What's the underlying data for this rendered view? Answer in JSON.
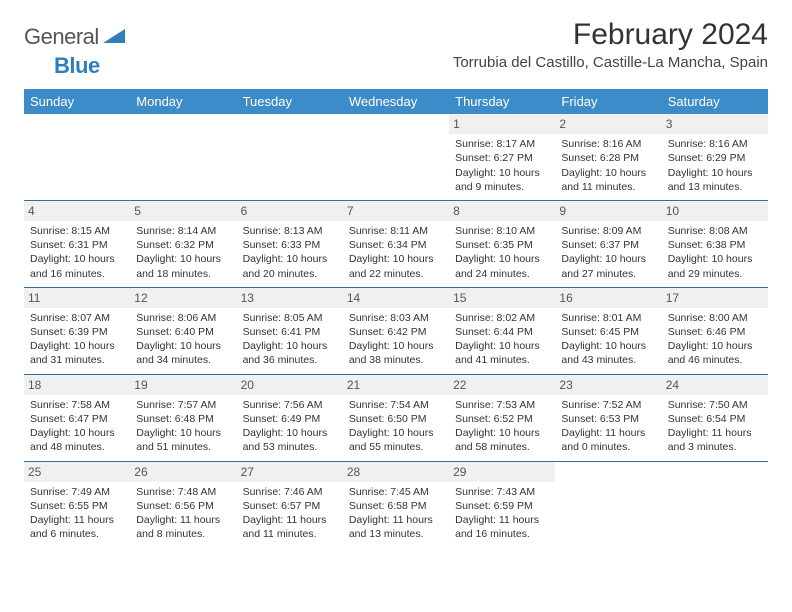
{
  "logo": {
    "word1": "General",
    "word2": "Blue"
  },
  "title": "February 2024",
  "location": "Torrubia del Castillo, Castille-La Mancha, Spain",
  "colors": {
    "header_bg": "#3b8cc8",
    "header_text": "#ffffff",
    "daynum_bg": "#f0f0f0",
    "rule": "#2f6fa8",
    "logo_blue": "#2f7fbf",
    "body_text": "#333333"
  },
  "weekdays": [
    "Sunday",
    "Monday",
    "Tuesday",
    "Wednesday",
    "Thursday",
    "Friday",
    "Saturday"
  ],
  "weeks": [
    [
      {
        "n": "",
        "sr": "",
        "ss": "",
        "d1": "",
        "d2": ""
      },
      {
        "n": "",
        "sr": "",
        "ss": "",
        "d1": "",
        "d2": ""
      },
      {
        "n": "",
        "sr": "",
        "ss": "",
        "d1": "",
        "d2": ""
      },
      {
        "n": "",
        "sr": "",
        "ss": "",
        "d1": "",
        "d2": ""
      },
      {
        "n": "1",
        "sr": "Sunrise: 8:17 AM",
        "ss": "Sunset: 6:27 PM",
        "d1": "Daylight: 10 hours",
        "d2": "and 9 minutes."
      },
      {
        "n": "2",
        "sr": "Sunrise: 8:16 AM",
        "ss": "Sunset: 6:28 PM",
        "d1": "Daylight: 10 hours",
        "d2": "and 11 minutes."
      },
      {
        "n": "3",
        "sr": "Sunrise: 8:16 AM",
        "ss": "Sunset: 6:29 PM",
        "d1": "Daylight: 10 hours",
        "d2": "and 13 minutes."
      }
    ],
    [
      {
        "n": "4",
        "sr": "Sunrise: 8:15 AM",
        "ss": "Sunset: 6:31 PM",
        "d1": "Daylight: 10 hours",
        "d2": "and 16 minutes."
      },
      {
        "n": "5",
        "sr": "Sunrise: 8:14 AM",
        "ss": "Sunset: 6:32 PM",
        "d1": "Daylight: 10 hours",
        "d2": "and 18 minutes."
      },
      {
        "n": "6",
        "sr": "Sunrise: 8:13 AM",
        "ss": "Sunset: 6:33 PM",
        "d1": "Daylight: 10 hours",
        "d2": "and 20 minutes."
      },
      {
        "n": "7",
        "sr": "Sunrise: 8:11 AM",
        "ss": "Sunset: 6:34 PM",
        "d1": "Daylight: 10 hours",
        "d2": "and 22 minutes."
      },
      {
        "n": "8",
        "sr": "Sunrise: 8:10 AM",
        "ss": "Sunset: 6:35 PM",
        "d1": "Daylight: 10 hours",
        "d2": "and 24 minutes."
      },
      {
        "n": "9",
        "sr": "Sunrise: 8:09 AM",
        "ss": "Sunset: 6:37 PM",
        "d1": "Daylight: 10 hours",
        "d2": "and 27 minutes."
      },
      {
        "n": "10",
        "sr": "Sunrise: 8:08 AM",
        "ss": "Sunset: 6:38 PM",
        "d1": "Daylight: 10 hours",
        "d2": "and 29 minutes."
      }
    ],
    [
      {
        "n": "11",
        "sr": "Sunrise: 8:07 AM",
        "ss": "Sunset: 6:39 PM",
        "d1": "Daylight: 10 hours",
        "d2": "and 31 minutes."
      },
      {
        "n": "12",
        "sr": "Sunrise: 8:06 AM",
        "ss": "Sunset: 6:40 PM",
        "d1": "Daylight: 10 hours",
        "d2": "and 34 minutes."
      },
      {
        "n": "13",
        "sr": "Sunrise: 8:05 AM",
        "ss": "Sunset: 6:41 PM",
        "d1": "Daylight: 10 hours",
        "d2": "and 36 minutes."
      },
      {
        "n": "14",
        "sr": "Sunrise: 8:03 AM",
        "ss": "Sunset: 6:42 PM",
        "d1": "Daylight: 10 hours",
        "d2": "and 38 minutes."
      },
      {
        "n": "15",
        "sr": "Sunrise: 8:02 AM",
        "ss": "Sunset: 6:44 PM",
        "d1": "Daylight: 10 hours",
        "d2": "and 41 minutes."
      },
      {
        "n": "16",
        "sr": "Sunrise: 8:01 AM",
        "ss": "Sunset: 6:45 PM",
        "d1": "Daylight: 10 hours",
        "d2": "and 43 minutes."
      },
      {
        "n": "17",
        "sr": "Sunrise: 8:00 AM",
        "ss": "Sunset: 6:46 PM",
        "d1": "Daylight: 10 hours",
        "d2": "and 46 minutes."
      }
    ],
    [
      {
        "n": "18",
        "sr": "Sunrise: 7:58 AM",
        "ss": "Sunset: 6:47 PM",
        "d1": "Daylight: 10 hours",
        "d2": "and 48 minutes."
      },
      {
        "n": "19",
        "sr": "Sunrise: 7:57 AM",
        "ss": "Sunset: 6:48 PM",
        "d1": "Daylight: 10 hours",
        "d2": "and 51 minutes."
      },
      {
        "n": "20",
        "sr": "Sunrise: 7:56 AM",
        "ss": "Sunset: 6:49 PM",
        "d1": "Daylight: 10 hours",
        "d2": "and 53 minutes."
      },
      {
        "n": "21",
        "sr": "Sunrise: 7:54 AM",
        "ss": "Sunset: 6:50 PM",
        "d1": "Daylight: 10 hours",
        "d2": "and 55 minutes."
      },
      {
        "n": "22",
        "sr": "Sunrise: 7:53 AM",
        "ss": "Sunset: 6:52 PM",
        "d1": "Daylight: 10 hours",
        "d2": "and 58 minutes."
      },
      {
        "n": "23",
        "sr": "Sunrise: 7:52 AM",
        "ss": "Sunset: 6:53 PM",
        "d1": "Daylight: 11 hours",
        "d2": "and 0 minutes."
      },
      {
        "n": "24",
        "sr": "Sunrise: 7:50 AM",
        "ss": "Sunset: 6:54 PM",
        "d1": "Daylight: 11 hours",
        "d2": "and 3 minutes."
      }
    ],
    [
      {
        "n": "25",
        "sr": "Sunrise: 7:49 AM",
        "ss": "Sunset: 6:55 PM",
        "d1": "Daylight: 11 hours",
        "d2": "and 6 minutes."
      },
      {
        "n": "26",
        "sr": "Sunrise: 7:48 AM",
        "ss": "Sunset: 6:56 PM",
        "d1": "Daylight: 11 hours",
        "d2": "and 8 minutes."
      },
      {
        "n": "27",
        "sr": "Sunrise: 7:46 AM",
        "ss": "Sunset: 6:57 PM",
        "d1": "Daylight: 11 hours",
        "d2": "and 11 minutes."
      },
      {
        "n": "28",
        "sr": "Sunrise: 7:45 AM",
        "ss": "Sunset: 6:58 PM",
        "d1": "Daylight: 11 hours",
        "d2": "and 13 minutes."
      },
      {
        "n": "29",
        "sr": "Sunrise: 7:43 AM",
        "ss": "Sunset: 6:59 PM",
        "d1": "Daylight: 11 hours",
        "d2": "and 16 minutes."
      },
      {
        "n": "",
        "sr": "",
        "ss": "",
        "d1": "",
        "d2": ""
      },
      {
        "n": "",
        "sr": "",
        "ss": "",
        "d1": "",
        "d2": ""
      }
    ]
  ]
}
